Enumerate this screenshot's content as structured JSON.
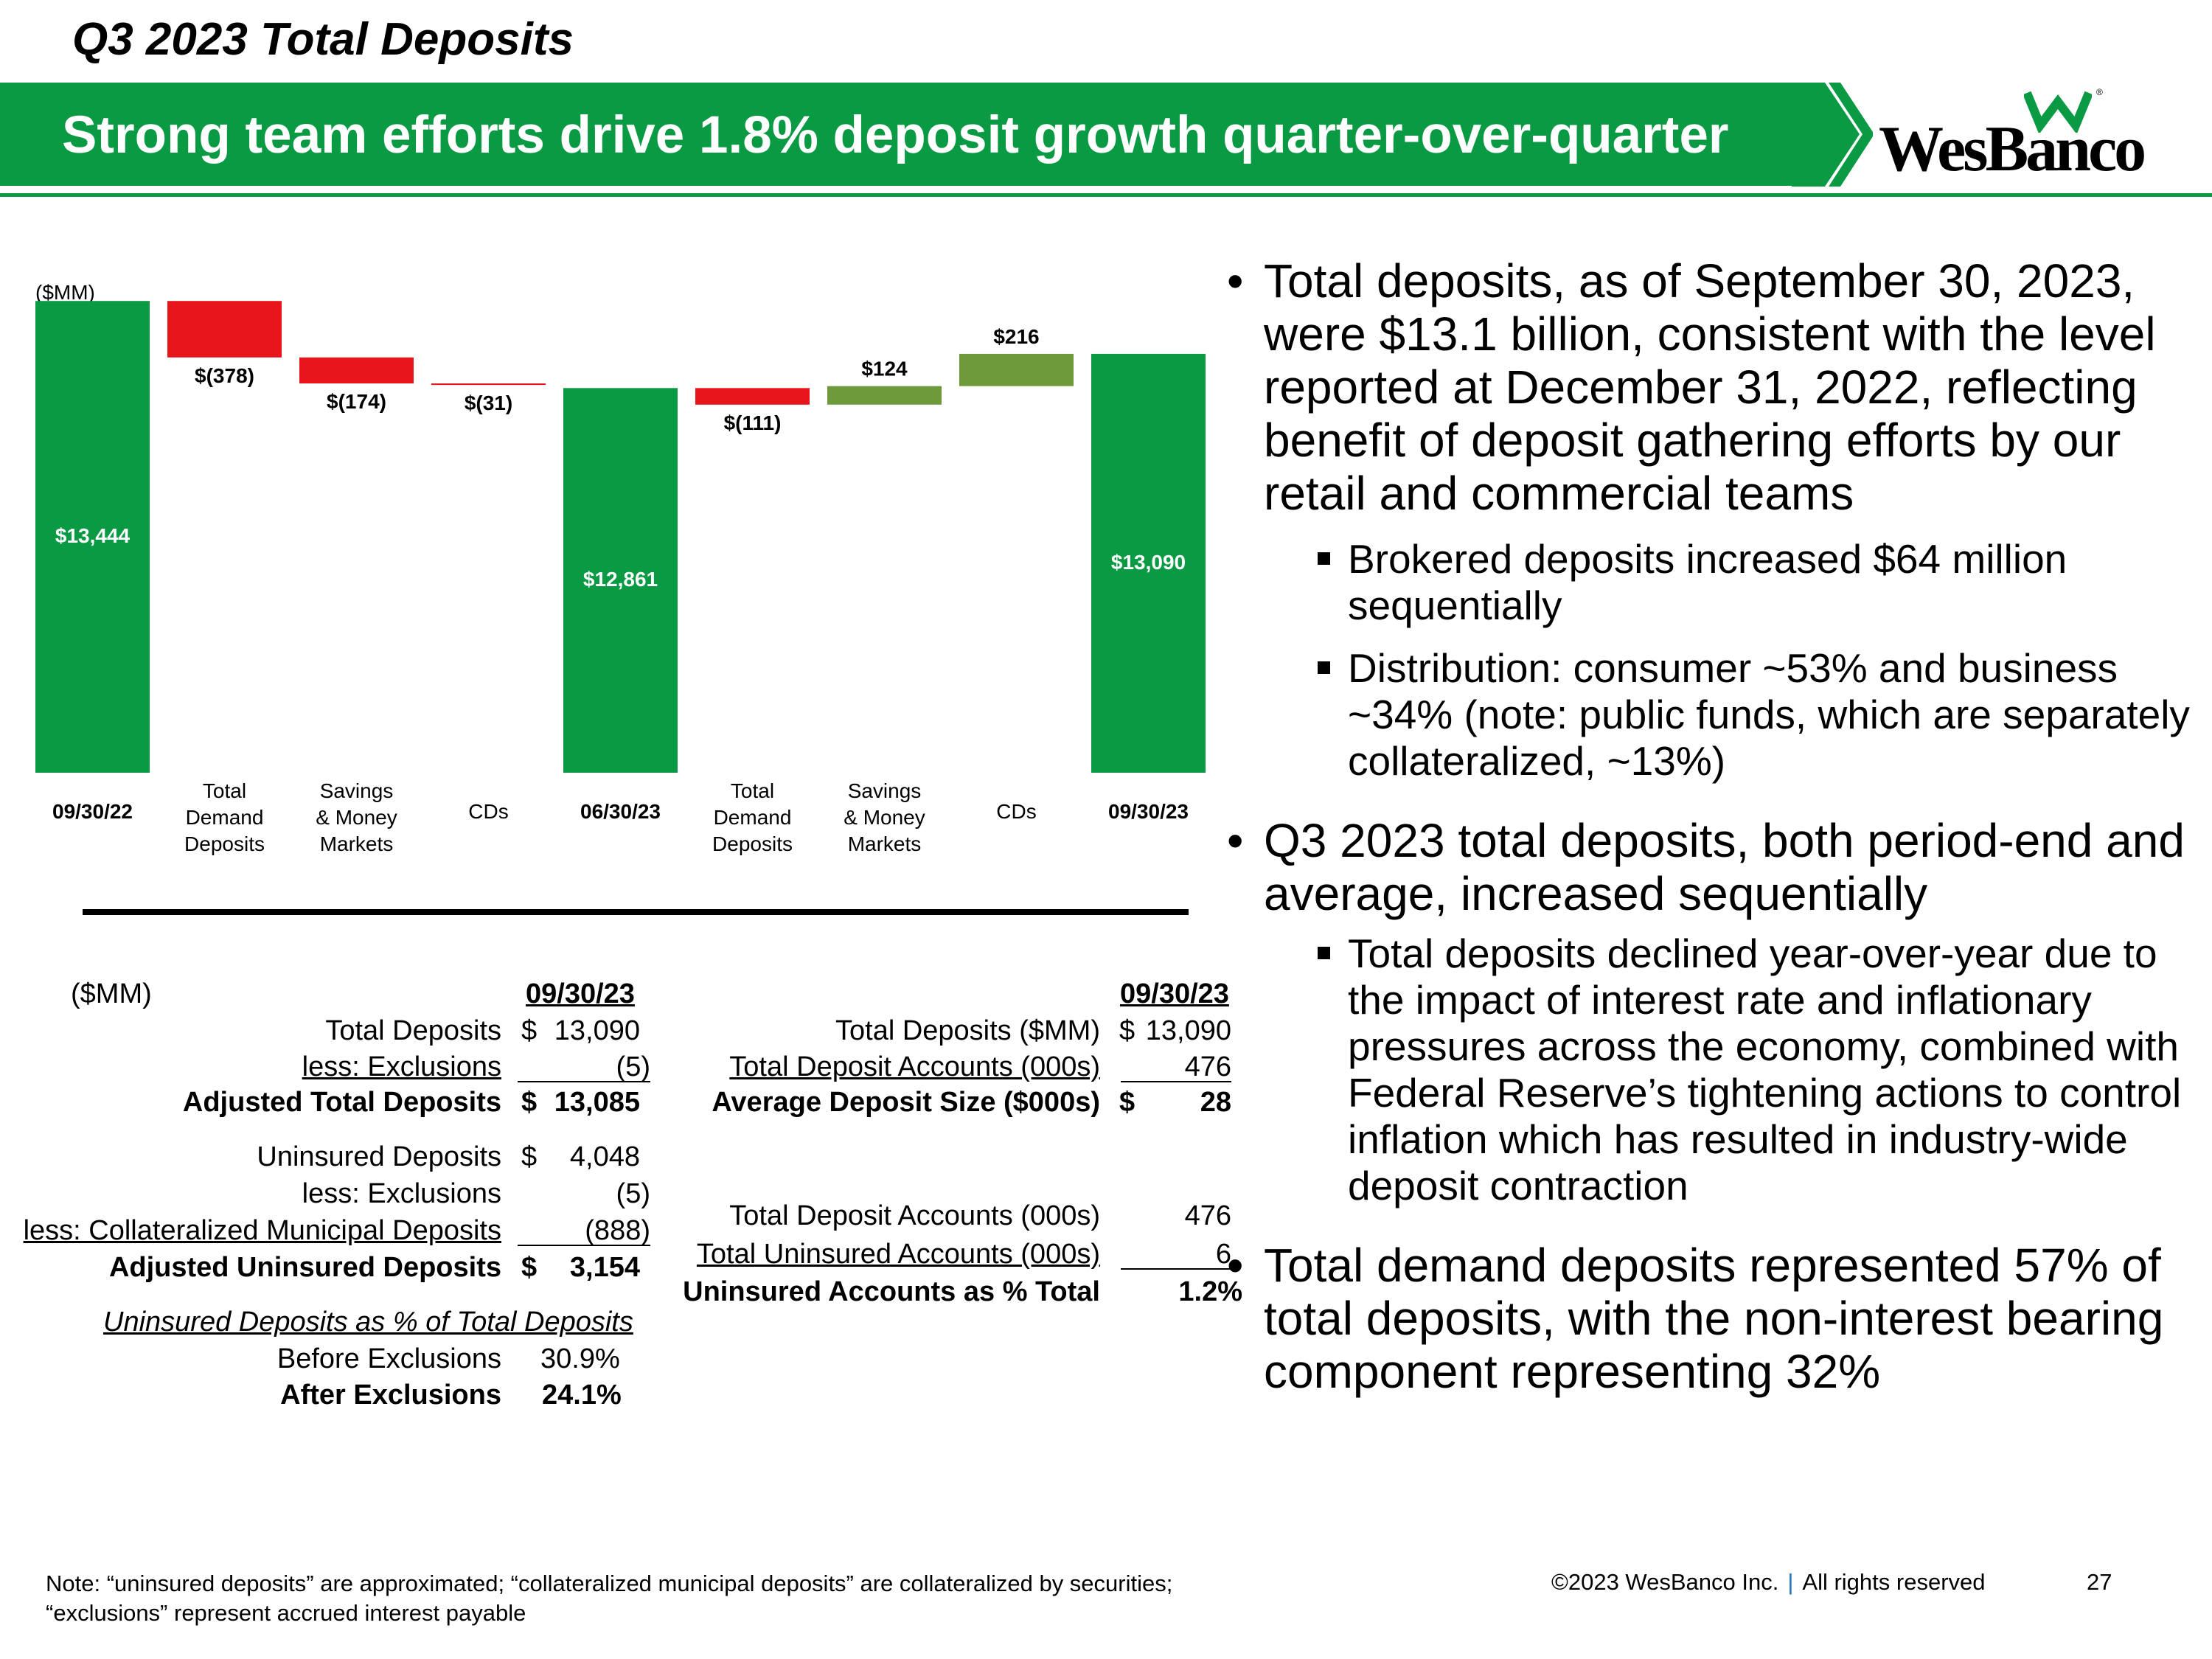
{
  "header": {
    "section_title": "Q3 2023 Total Deposits",
    "banner_title": "Strong team efforts drive 1.8% deposit growth quarter-over-quarter",
    "logo_text": "WesBanco",
    "brand_color": "#0a9a44"
  },
  "chart_data": {
    "type": "waterfall",
    "unit_label": "($MM)",
    "steps": [
      {
        "label": [
          "09/30/22"
        ],
        "kind": "total",
        "value": 13444,
        "display": "$13,444"
      },
      {
        "label": [
          "Total",
          "Demand",
          "Deposits"
        ],
        "kind": "delta",
        "value": -378,
        "display": "$(378)"
      },
      {
        "label": [
          "Savings",
          "& Money",
          "Markets"
        ],
        "kind": "delta",
        "value": -174,
        "display": "$(174)"
      },
      {
        "label": [
          "CDs"
        ],
        "kind": "delta",
        "value": -31,
        "display": "$(31)"
      },
      {
        "label": [
          "06/30/23"
        ],
        "kind": "total",
        "value": 12861,
        "display": "$12,861"
      },
      {
        "label": [
          "Total",
          "Demand",
          "Deposits"
        ],
        "kind": "delta",
        "value": -111,
        "display": "$(111)"
      },
      {
        "label": [
          "Savings",
          "& Money",
          "Markets"
        ],
        "kind": "delta",
        "value": 124,
        "display": "$124"
      },
      {
        "label": [
          "CDs"
        ],
        "kind": "delta",
        "value": 216,
        "display": "$216"
      },
      {
        "label": [
          "09/30/23"
        ],
        "kind": "total",
        "value": 13090,
        "display": "$13,090"
      }
    ],
    "colors": {
      "total": "#0a9a44",
      "decrease": "#e8161b",
      "increase": "#6f9a3c"
    }
  },
  "left_table": {
    "unit": "($MM)",
    "date_header": "09/30/23",
    "total_deposits_label": "Total Deposits",
    "total_deposits_dollar": "$",
    "total_deposits_value": "13,090",
    "exclusions_label": "less: Exclusions",
    "exclusions_value": "(5)",
    "adjusted_total_label": "Adjusted Total Deposits",
    "adjusted_total_dollar": "$",
    "adjusted_total_value": "13,085",
    "uninsured_label": "Uninsured Deposits",
    "uninsured_dollar": "$",
    "uninsured_value": "4,048",
    "uninsured_exclusions_label": "less: Exclusions",
    "uninsured_exclusions_value": "(5)",
    "collateralized_label": "less: Collateralized Municipal Deposits",
    "collateralized_value": "(888)",
    "adjusted_uninsured_label": "Adjusted Uninsured Deposits",
    "adjusted_uninsured_dollar": "$",
    "adjusted_uninsured_value": "3,154",
    "pct_heading": "Uninsured Deposits as % of Total Deposits",
    "before_label": "Before Exclusions",
    "before_value": "30.9%",
    "after_label": "After Exclusions",
    "after_value": "24.1%"
  },
  "right_table": {
    "date_header": "09/30/23",
    "total_deposits_label": "Total Deposits ($MM)",
    "total_deposits_dollar": "$",
    "total_deposits_value": "13,090",
    "accounts_label": "Total Deposit Accounts (000s)",
    "accounts_value": "476",
    "avg_size_label": "Average Deposit Size ($000s)",
    "avg_size_dollar": "$",
    "avg_size_value": "28",
    "accounts2_label": "Total Deposit Accounts (000s)",
    "accounts2_value": "476",
    "uninsured_accounts_label": "Total Uninsured Accounts (000s)",
    "uninsured_accounts_value": "6",
    "uninsured_pct_label": "Uninsured Accounts as % Total",
    "uninsured_pct_value": "1.2%"
  },
  "bullets": {
    "b1": "Total deposits, as of September 30, 2023, were $13.1 billion, consistent with the level reported at December 31, 2022, reflecting benefit of deposit gathering efforts by our retail and commercial teams",
    "b1_sub1": "Brokered deposits increased $64 million sequentially",
    "b1_sub2": "Distribution: consumer ~53% and business ~34% (note: public funds, which are separately collateralized, ~13%)",
    "b2": "Q3 2023 total deposits, both period-end and average, increased sequentially",
    "b2_sub1": "Total deposits declined year-over-year due to the impact of interest rate and inflationary pressures across the economy, combined with Federal Reserve’s tightening actions to control inflation which has resulted in industry-wide deposit contraction",
    "b3": "Total demand deposits represented 57% of total deposits, with the non-interest bearing component representing 32%"
  },
  "footer": {
    "note_line1": "Note: “uninsured deposits” are approximated; “collateralized municipal deposits” are collateralized by securities;",
    "note_line2": "“exclusions” represent accrued interest payable",
    "copyright": "©2023 WesBanco Inc.",
    "separator": "|",
    "rights": "All rights reserved",
    "page": "27"
  }
}
